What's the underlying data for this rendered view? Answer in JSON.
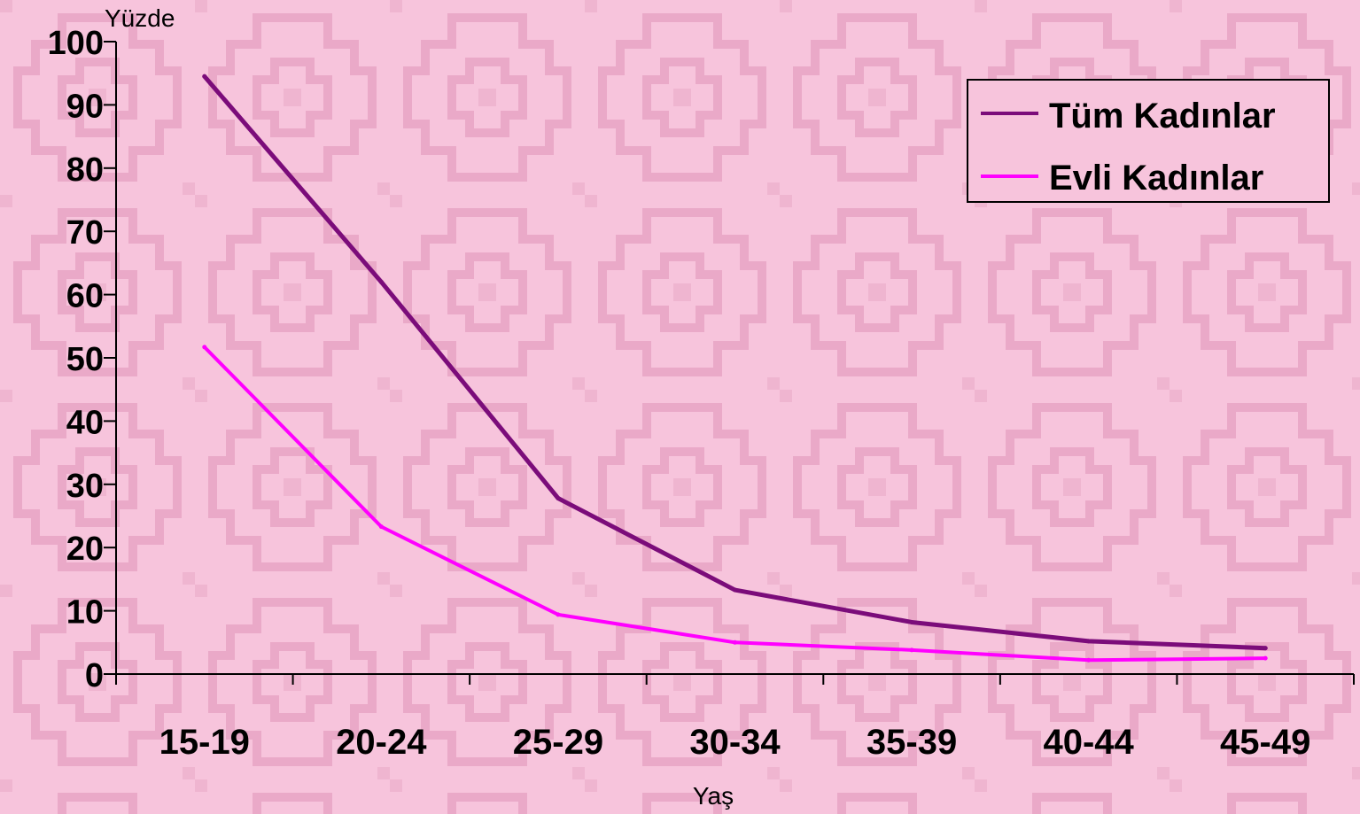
{
  "chart_data": {
    "type": "line",
    "title": "",
    "ylabel": "Yüzde",
    "xlabel": "Yaş",
    "categories": [
      "15-19",
      "20-24",
      "25-29",
      "30-34",
      "35-39",
      "40-44",
      "45-49"
    ],
    "ylim": [
      0,
      100
    ],
    "yticks": [
      0,
      10,
      20,
      30,
      40,
      50,
      60,
      70,
      80,
      90,
      100
    ],
    "legend_position": "top-right",
    "grid": false,
    "series": [
      {
        "name": "Tüm Kadınlar",
        "color": "#7b0c7a",
        "values": [
          94.5,
          62,
          27.8,
          13.3,
          8.2,
          5.2,
          4.1
        ]
      },
      {
        "name": "Evli Kadınlar",
        "color": "#ff00ff",
        "values": [
          51.7,
          23.3,
          9.4,
          5,
          3.8,
          2.2,
          2.5
        ]
      }
    ]
  },
  "colors": {
    "background": "#f7c4dc",
    "pattern": "#eaa9c8",
    "axis": "#000000"
  }
}
